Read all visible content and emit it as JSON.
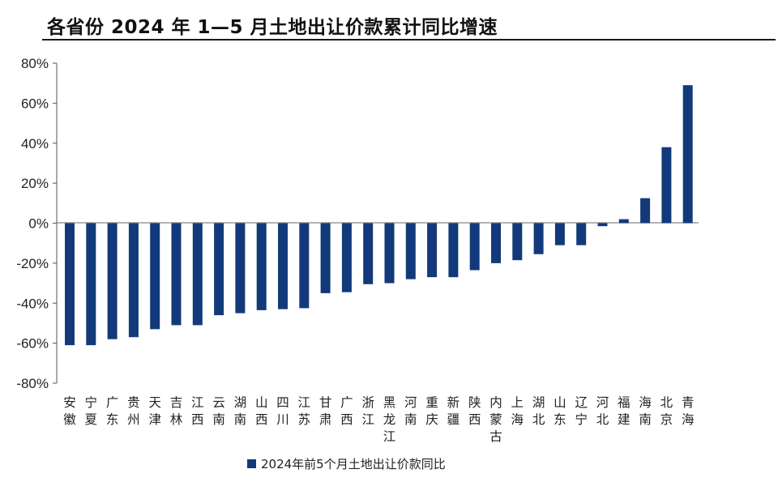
{
  "title": "各省份 2024 年 1—5 月土地出让价款累计同比增速",
  "chart_data": {
    "type": "bar",
    "title": "各省份 2024 年 1—5 月土地出让价款累计同比增速",
    "xlabel": "",
    "ylabel": "",
    "ylim": [
      -80,
      80
    ],
    "yticks": [
      80,
      60,
      40,
      20,
      0,
      -20,
      -40,
      -60,
      -80
    ],
    "ytick_labels": [
      "80%",
      "60%",
      "40%",
      "20%",
      "0%",
      "-20%",
      "-40%",
      "-60%",
      "-80%"
    ],
    "categories": [
      "安徽",
      "宁夏",
      "广东",
      "贵州",
      "天津",
      "吉林",
      "江西",
      "云南",
      "湖南",
      "山西",
      "四川",
      "江苏",
      "甘肃",
      "广西",
      "浙江",
      "黑龙江",
      "河南",
      "重庆",
      "新疆",
      "陕西",
      "内蒙古",
      "上海",
      "湖北",
      "山东",
      "辽宁",
      "河北",
      "福建",
      "海南",
      "北京",
      "青海"
    ],
    "series": [
      {
        "name": "2024年前5个月土地出让价款同比",
        "values": [
          -61,
          -61,
          -58,
          -57,
          -53,
          -51,
          -51,
          -46,
          -45,
          -43.5,
          -43,
          -42.5,
          -35,
          -34.5,
          -30.5,
          -30,
          -28,
          -27,
          -27,
          -23.5,
          -20,
          -18.5,
          -15.5,
          -11,
          -11,
          -1.5,
          2,
          12.5,
          38,
          69
        ]
      }
    ],
    "legend": "bottom",
    "grid": false,
    "colors": {
      "bar": "#123a7a"
    }
  }
}
